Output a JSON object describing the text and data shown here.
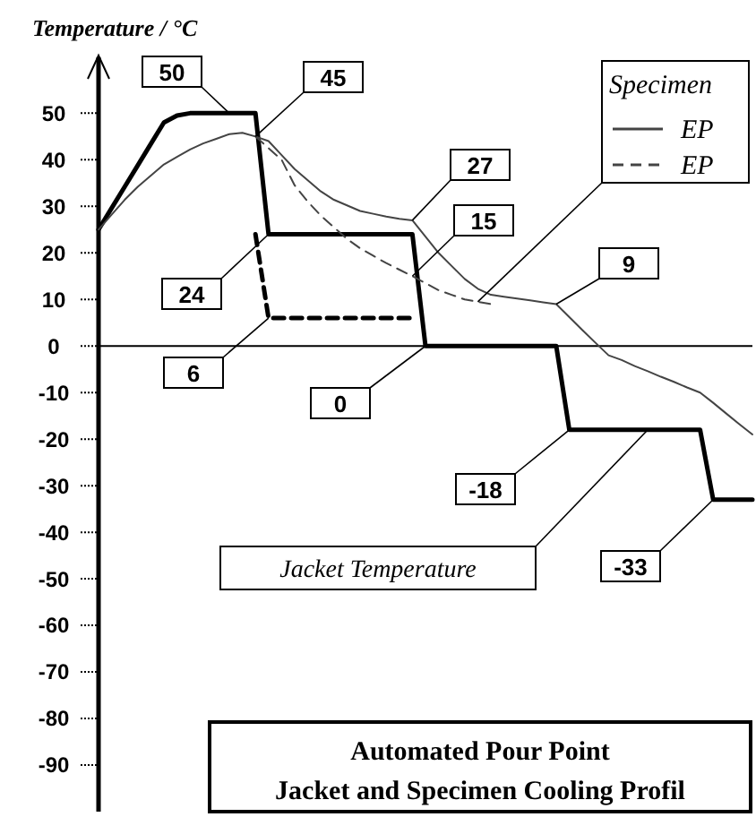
{
  "chart_data": {
    "type": "line",
    "title": "Automated Pour Point",
    "subtitle": "Jacket and Specimen Cooling Profil",
    "ylabel": "Temperature / °C",
    "legend_title": "Specimen",
    "legend": "top right",
    "tick_labels": "y",
    "ylim": [
      -100,
      62
    ],
    "categories": [
      null,
      null,
      null,
      null,
      null,
      null,
      null,
      null,
      null,
      null,
      null,
      null,
      null,
      null,
      null,
      null,
      null,
      null,
      null,
      null,
      null,
      null,
      null,
      null,
      null,
      null,
      null,
      null,
      null,
      null,
      null,
      null,
      null,
      null,
      null,
      null,
      null,
      null,
      null,
      null,
      null,
      null,
      null,
      null,
      null,
      null,
      null,
      null,
      null,
      null,
      null
    ],
    "yticks": [
      50,
      40,
      30,
      20,
      10,
      0,
      -10,
      -20,
      -30,
      -40,
      -50,
      -60,
      -70,
      -80,
      -90
    ],
    "series": [
      {
        "color": "#000000",
        "line_style": "solid",
        "values": [
          25,
          29.6,
          34.2,
          38.8,
          43.4,
          48,
          49.5,
          50,
          50,
          50,
          50,
          50,
          50,
          24,
          24,
          24,
          24,
          24,
          24,
          24,
          24,
          24,
          24,
          24,
          24,
          0,
          0,
          0,
          0,
          0,
          0,
          0,
          0,
          0,
          0,
          0,
          -18,
          -18,
          -18,
          -18,
          -18,
          -18,
          -18,
          -18,
          -18,
          -18,
          -18,
          -33,
          -33,
          -33,
          -33
        ]
      },
      {
        "color": "#000000",
        "line_style": "dashed",
        "values": [
          null,
          null,
          null,
          null,
          null,
          null,
          null,
          null,
          null,
          null,
          null,
          null,
          24,
          6,
          6,
          6,
          6,
          6,
          6,
          6,
          6,
          6,
          6,
          6,
          6,
          null,
          null,
          null,
          null,
          null,
          null,
          null,
          null,
          null,
          null,
          null,
          null,
          null,
          null,
          null,
          null,
          null,
          null,
          null,
          null,
          null,
          null,
          null,
          null,
          null,
          null
        ]
      },
      {
        "name": "EP",
        "color": "#444444",
        "line_style": "solid",
        "values": [
          25,
          28.2,
          31.4,
          34.2,
          36.6,
          39,
          40.6,
          42.2,
          43.5,
          44.5,
          45.5,
          45.8,
          45,
          44,
          41,
          38,
          35.6,
          33.2,
          31.4,
          30.2,
          29,
          28.4,
          27.8,
          27.3,
          27,
          23.5,
          20,
          17.2,
          14.4,
          12.3,
          11,
          10.6,
          10.2,
          9.8,
          9.4,
          9,
          6.2,
          3.4,
          0.7,
          -2,
          -3,
          -4.3,
          -5.4,
          -6.6,
          -7.7,
          -8.9,
          -10,
          -12.2,
          -14.5,
          -16.8,
          -19
        ]
      },
      {
        "name": "EP",
        "color": "#444444",
        "line_style": "dashed",
        "values": [
          null,
          null,
          null,
          null,
          null,
          null,
          null,
          null,
          null,
          null,
          null,
          null,
          45,
          42.5,
          40,
          34.5,
          31,
          28,
          25.5,
          23,
          21,
          19.4,
          17.8,
          16.4,
          15,
          13.5,
          12,
          11,
          10,
          9.5,
          9,
          null,
          null,
          null,
          null,
          null,
          null,
          null,
          null,
          null,
          null,
          null,
          null,
          null,
          null,
          null,
          null,
          null,
          null,
          null,
          null
        ]
      }
    ],
    "annotations": [
      "50",
      "45",
      "27",
      "15",
      "9",
      "24",
      "6",
      "0",
      "-18",
      "-33",
      "Jacket Temperature"
    ]
  }
}
